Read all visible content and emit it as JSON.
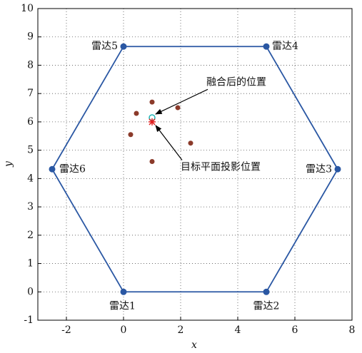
{
  "chart_data": {
    "type": "scatter",
    "x_label": "x",
    "y_label": "y",
    "xlim": [
      -3,
      8
    ],
    "ylim": [
      -1,
      10
    ],
    "xticks": [
      -2,
      0,
      2,
      4,
      6,
      8
    ],
    "yticks": [
      -1,
      0,
      1,
      2,
      3,
      4,
      5,
      6,
      7,
      8,
      9,
      10
    ],
    "grid": true,
    "series": [
      {
        "color": "#2a57a3",
        "closed": true,
        "marker": "dot",
        "x": [
          0,
          5,
          7.5,
          5,
          0,
          -2.5
        ],
        "y": [
          0,
          0,
          4.33,
          8.66,
          8.66,
          4.33
        ],
        "point_labels": [
          "雷达1",
          "雷达2",
          "雷达3",
          "雷达4",
          "雷达5",
          "雷达6"
        ]
      },
      {
        "color": "#8b3a2a",
        "marker": "dot",
        "x": [
          1,
          0.45,
          1.9,
          0.25,
          2.35,
          1
        ],
        "y": [
          6.7,
          6.3,
          6.5,
          5.55,
          5.25,
          4.6
        ]
      },
      {
        "color": "#1fb5b5",
        "marker": "ring",
        "x": [
          1
        ],
        "y": [
          6.15
        ]
      },
      {
        "color": "#e02020",
        "marker": "star",
        "x": [
          1
        ],
        "y": [
          6
        ]
      }
    ],
    "annotations": [
      {
        "text": "融合后的位置",
        "x": 2.9,
        "y": 7.4
      },
      {
        "text": "目标平面投影位置",
        "x": 2,
        "y": 4.4
      }
    ]
  }
}
